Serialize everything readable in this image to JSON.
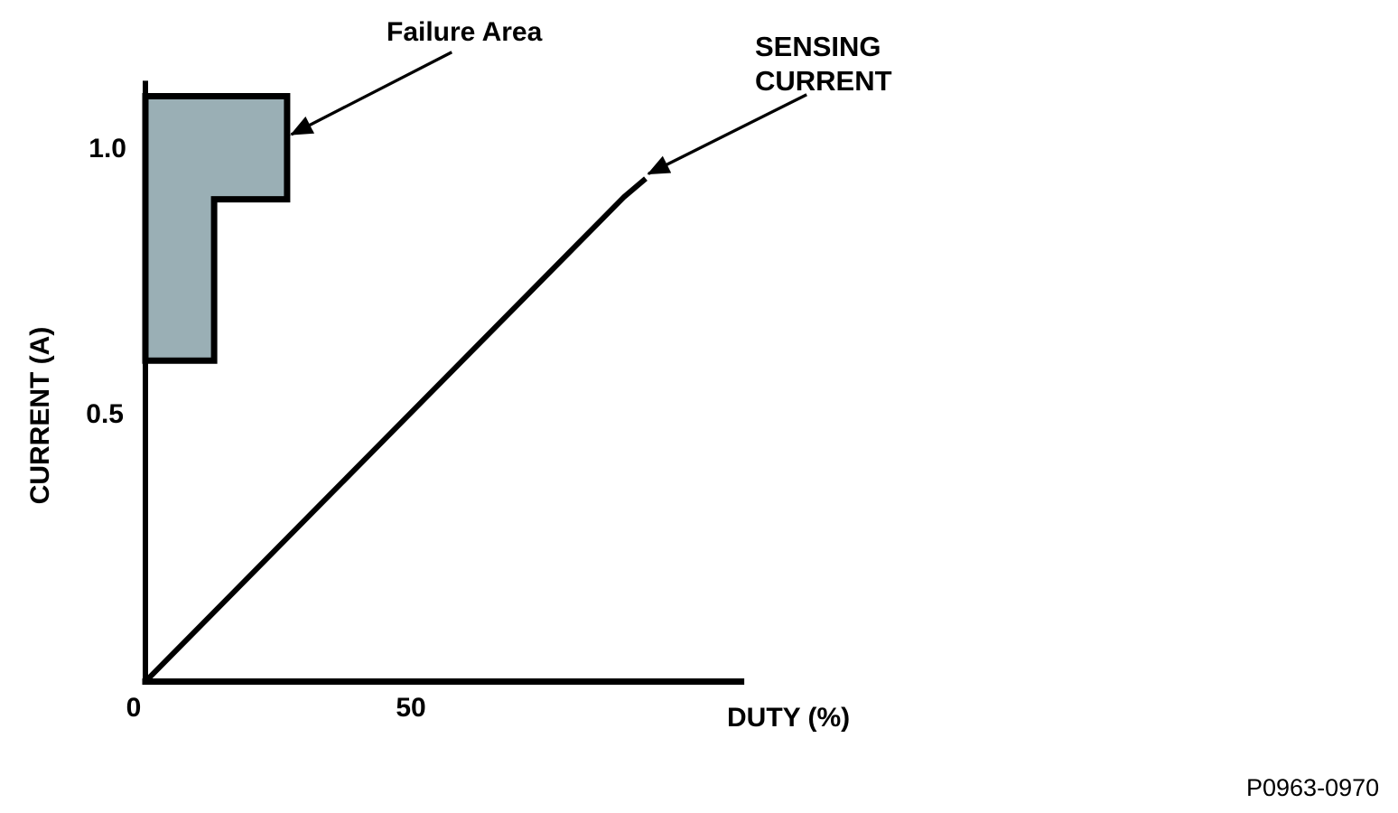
{
  "chart_data": {
    "type": "line",
    "title": "",
    "xlabel": "DUTY (%)",
    "ylabel": "CURRENT (A)",
    "xlim": [
      0,
      111.8
    ],
    "ylim": [
      0,
      1.126
    ],
    "grid": false,
    "x_ticks": [
      {
        "value": 0,
        "label": "0"
      },
      {
        "value": 50,
        "label": "50"
      }
    ],
    "y_ticks": [
      {
        "value": 1.0,
        "label": "1.0"
      },
      {
        "value": 0.5,
        "label": "0.5"
      }
    ],
    "series": [
      {
        "name": "SENSING CURRENT",
        "type": "line",
        "color": "#000000",
        "points": [
          [
            0,
            0
          ],
          [
            89.8,
            0.912
          ],
          [
            93.9,
            0.947
          ]
        ]
      },
      {
        "name": "Failure Area",
        "type": "polygon",
        "fill": "#9AAFB5",
        "stroke": "#000000",
        "points": [
          [
            0,
            1.102
          ],
          [
            26.6,
            1.102
          ],
          [
            26.6,
            0.908
          ],
          [
            12.9,
            0.908
          ],
          [
            12.9,
            0.604
          ],
          [
            0,
            0.604
          ]
        ]
      }
    ],
    "annotations": [
      {
        "label": "Failure Area",
        "lines": [
          "Failure Area"
        ],
        "arrow_from": [
          57.5,
          1.185
        ],
        "arrow_to": [
          27.4,
          1.03
        ]
      },
      {
        "label": "SENSING CURRENT",
        "lines": [
          "SENSING",
          "CURRENT"
        ],
        "arrow_from": [
          124.1,
          1.105
        ],
        "arrow_to": [
          94.4,
          0.956
        ]
      }
    ]
  },
  "page": {
    "figure_code": "P0963-0970"
  },
  "colors": {
    "failure_fill": "#9AAFB5",
    "line_black": "#000000",
    "background": "#ffffff"
  }
}
